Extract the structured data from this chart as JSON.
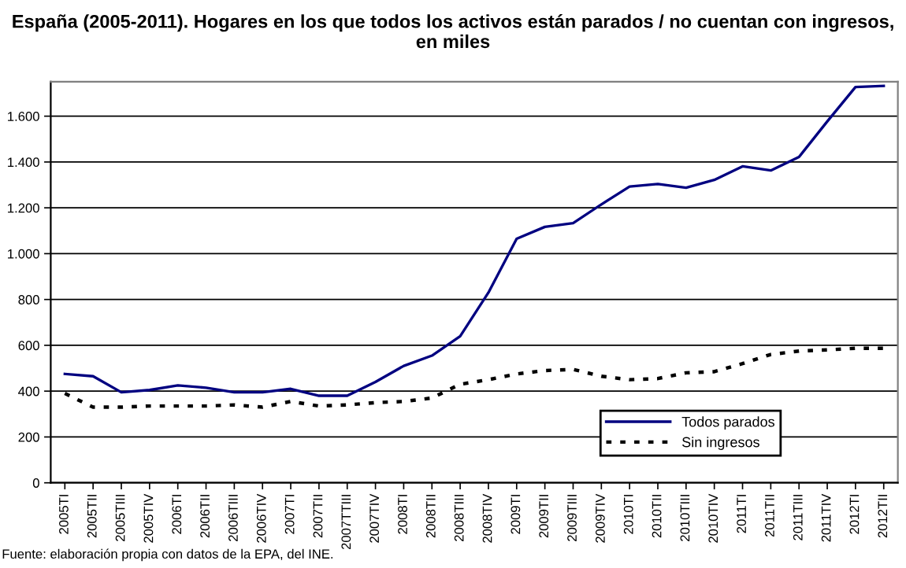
{
  "chart_data": {
    "type": "line",
    "title": "España (2005-2011). Hogares en los que todos los activos están parados / no cuentan con ingresos, en miles",
    "categories": [
      "2005TI",
      "2005TII",
      "2005TIII",
      "2005TIV",
      "2006TI",
      "2006TII",
      "2006TIII",
      "2006TIV",
      "2007TI",
      "2007TII",
      "2007TTIII",
      "2007TIV",
      "2008TI",
      "2008TII",
      "2008TIII",
      "2008TIV",
      "2009TI",
      "2009TII",
      "2009TIII",
      "2009TIV",
      "2010TI",
      "2010TII",
      "2010TIII",
      "2010TIV",
      "2011TI",
      "2011TII",
      "2011TIII",
      "2011TIV",
      "2012TI",
      "2012TII"
    ],
    "series": [
      {
        "name": "Todos parados",
        "color": "#000080",
        "line_style": "solid",
        "values": [
          475,
          465,
          395,
          405,
          425,
          415,
          395,
          395,
          410,
          380,
          380,
          440,
          510,
          555,
          640,
          830,
          1065,
          1117,
          1133,
          1215,
          1293,
          1304,
          1288,
          1322,
          1381,
          1363,
          1422,
          1577,
          1727,
          1732
        ]
      },
      {
        "name": "Sin ingresos",
        "color": "#000000",
        "line_style": "dotted",
        "values": [
          390,
          330,
          330,
          335,
          335,
          335,
          340,
          330,
          355,
          335,
          340,
          350,
          355,
          370,
          430,
          450,
          475,
          490,
          495,
          465,
          450,
          455,
          480,
          485,
          520,
          560,
          575,
          580,
          587,
          587
        ]
      }
    ],
    "ylim": [
      0,
      1750
    ],
    "yticks": [
      {
        "value": 0,
        "label": "0"
      },
      {
        "value": 200,
        "label": "200"
      },
      {
        "value": 400,
        "label": "400"
      },
      {
        "value": 600,
        "label": "600"
      },
      {
        "value": 800,
        "label": "800"
      },
      {
        "value": 1000,
        "label": "1.000"
      },
      {
        "value": 1200,
        "label": "1.200"
      },
      {
        "value": 1400,
        "label": "1.400"
      },
      {
        "value": 1600,
        "label": "1.600"
      }
    ],
    "grid": "y",
    "legend": "bottom right",
    "annotations": [
      "Fuente: elaboración propia con datos de la EPA, del INE."
    ]
  }
}
